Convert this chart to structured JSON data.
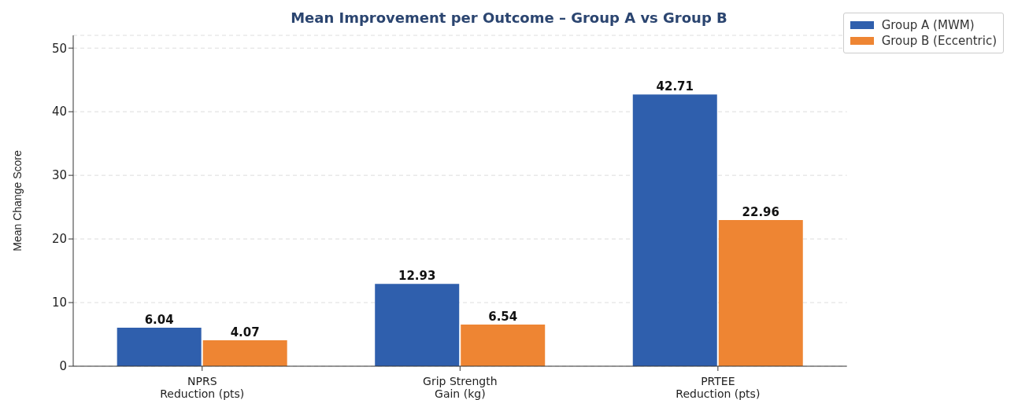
{
  "chart_data": {
    "type": "bar",
    "title": "Mean Improvement per Outcome – Group A vs Group B",
    "ylabel": "Mean Change Score",
    "categories": [
      "NPRS\nReduction (pts)",
      "Grip Strength\nGain (kg)",
      "PRTEE\nReduction (pts)"
    ],
    "series": [
      {
        "name": "Group A (MWM)",
        "color": "#2f5fad",
        "values": [
          6.04,
          12.93,
          42.71
        ]
      },
      {
        "name": "Group B (Eccentric)",
        "color": "#ee8533",
        "values": [
          4.07,
          6.54,
          22.96
        ]
      }
    ],
    "ylim": [
      0,
      52
    ],
    "yticks": [
      0,
      10,
      20,
      30,
      40,
      50
    ],
    "grid": "y",
    "legend": "top right",
    "data_labels": true
  }
}
